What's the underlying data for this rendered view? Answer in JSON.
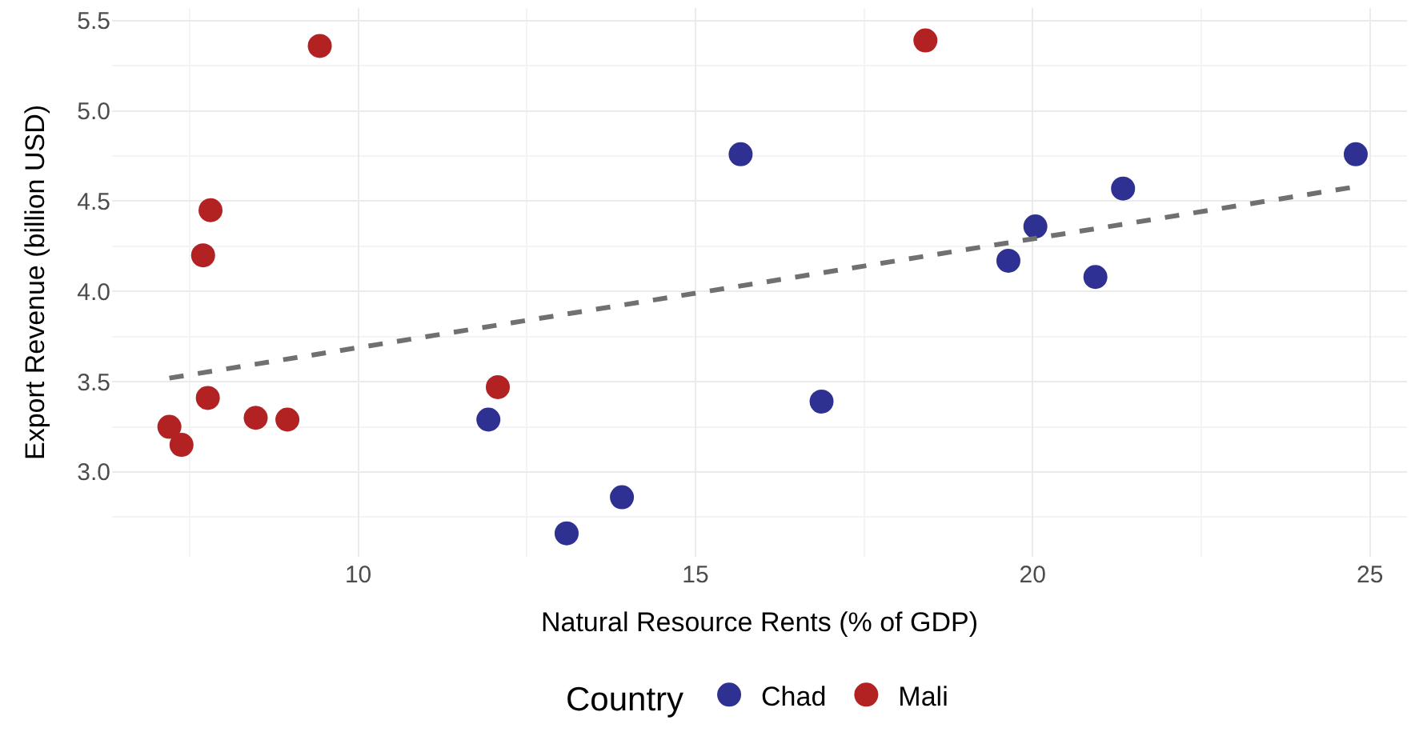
{
  "chart_data": {
    "type": "scatter",
    "xlabel": "Natural Resource Rents (% of GDP)",
    "ylabel": "Export Revenue (billion USD)",
    "legend_title": "Country",
    "legend": "bottom",
    "grid": true,
    "marker": "circle",
    "xlim": [
      6.35,
      25.55
    ],
    "xticks": [
      10,
      15,
      20,
      25
    ],
    "ylim": [
      2.53,
      5.57
    ],
    "yticks": [
      {
        "value": 3,
        "label": "3.0"
      },
      3.5,
      {
        "value": 4,
        "label": "4.0"
      },
      4.5,
      {
        "value": 5,
        "label": "5.0"
      },
      5.5
    ],
    "series": [
      {
        "name": "Chad",
        "color": "#2e3192",
        "x": [
          11.93,
          13.09,
          13.91,
          15.67,
          16.87,
          19.64,
          20.04,
          20.93,
          21.34,
          24.79
        ],
        "values": [
          3.29,
          2.66,
          2.86,
          4.76,
          3.39,
          4.17,
          4.36,
          4.08,
          4.57,
          4.76
        ]
      },
      {
        "name": "Mali",
        "color": "#b22222",
        "x": [
          7.2,
          7.38,
          7.7,
          7.77,
          7.81,
          8.48,
          8.95,
          9.43,
          12.07,
          18.41
        ],
        "values": [
          3.25,
          3.15,
          4.2,
          3.41,
          4.45,
          3.3,
          3.29,
          5.36,
          3.47,
          5.39
        ]
      },
      {
        "type": "line",
        "color": "#707070",
        "line_style": "dashed",
        "marker": "none",
        "x": [
          7.2,
          24.79
        ],
        "values": [
          3.52,
          4.58
        ]
      }
    ]
  }
}
